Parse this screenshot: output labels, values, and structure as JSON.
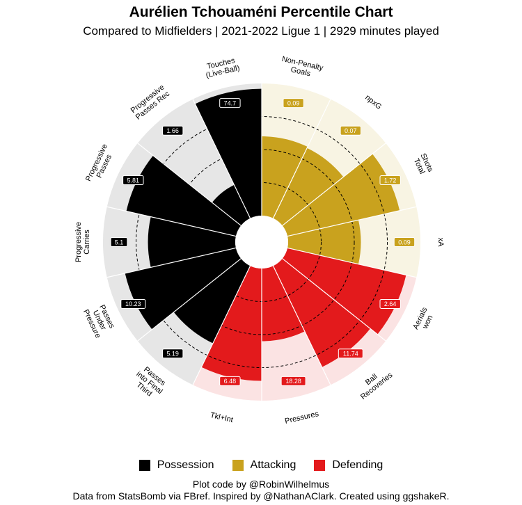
{
  "header": {
    "title": "Aurélien Tchouaméni Percentile Chart",
    "subtitle": "Compared to Midfielders  | 2021-2022 Ligue 1  | 2929 minutes played"
  },
  "footer": {
    "credit_line1": "Plot code by @RobinWilhelmus",
    "credit_line2": "Data from StatsBomb via FBref. Inspired by @NathanAClark. Created using ggshakeR."
  },
  "legend": [
    {
      "name": "Possession",
      "color": "#000000"
    },
    {
      "name": "Attacking",
      "color": "#c9a21e"
    },
    {
      "name": "Defending",
      "color": "#e31a1c"
    }
  ],
  "colors": {
    "Possession": {
      "bar": "#000000",
      "bg": "#e6e6e6"
    },
    "Attacking": {
      "bar": "#c9a21e",
      "bg": "#f8f4e3"
    },
    "Defending": {
      "bar": "#e31a1c",
      "bg": "#fbe3e3"
    }
  },
  "chart_data": {
    "type": "polar-bar",
    "title": "Aurélien Tchouaméni Percentile Chart",
    "subtitle": "Compared to Midfielders  | 2021-2022 Ligue 1  | 2929 minutes played",
    "percentile_range": [
      0,
      100
    ],
    "reference_rings": [
      25,
      50,
      75
    ],
    "series": [
      {
        "name": "Non-Penalty\nGoals",
        "group": "Attacking",
        "value_label": "0.09",
        "percentile": 60
      },
      {
        "name": "npxG",
        "group": "Attacking",
        "value_label": "0.07",
        "percentile": 59
      },
      {
        "name": "Shots\nTotal",
        "group": "Attacking",
        "value_label": "1.72",
        "percentile": 87
      },
      {
        "name": "xA",
        "group": "Attacking",
        "value_label": "0.09",
        "percentile": 55
      },
      {
        "name": "Aerials\nwon",
        "group": "Defending",
        "value_label": "2.64",
        "percentile": 92
      },
      {
        "name": "Ball\nRecoveries",
        "group": "Defending",
        "value_label": "11.74",
        "percentile": 85
      },
      {
        "name": "Pressures",
        "group": "Defending",
        "value_label": "18.28",
        "percentile": 55
      },
      {
        "name": "Tkl+Int",
        "group": "Defending",
        "value_label": "6.48",
        "percentile": 85
      },
      {
        "name": "Passes\ninto Final\nThird",
        "group": "Possession",
        "value_label": "5.19",
        "percentile": 65
      },
      {
        "name": "Passes\nUnder\nPressure",
        "group": "Possession",
        "value_label": "10.23",
        "percentile": 86
      },
      {
        "name": "Progressive\nCarries",
        "group": "Possession",
        "value_label": "5.1",
        "percentile": 66
      },
      {
        "name": "Progressive\nPasses",
        "group": "Possession",
        "value_label": "5.81",
        "percentile": 85
      },
      {
        "name": "Progressive\nPasses Rec",
        "group": "Possession",
        "value_label": "1.66",
        "percentile": 28
      },
      {
        "name": "Touches\n(Live-Ball)",
        "group": "Possession",
        "value_label": "74.7",
        "percentile": 96
      }
    ]
  }
}
